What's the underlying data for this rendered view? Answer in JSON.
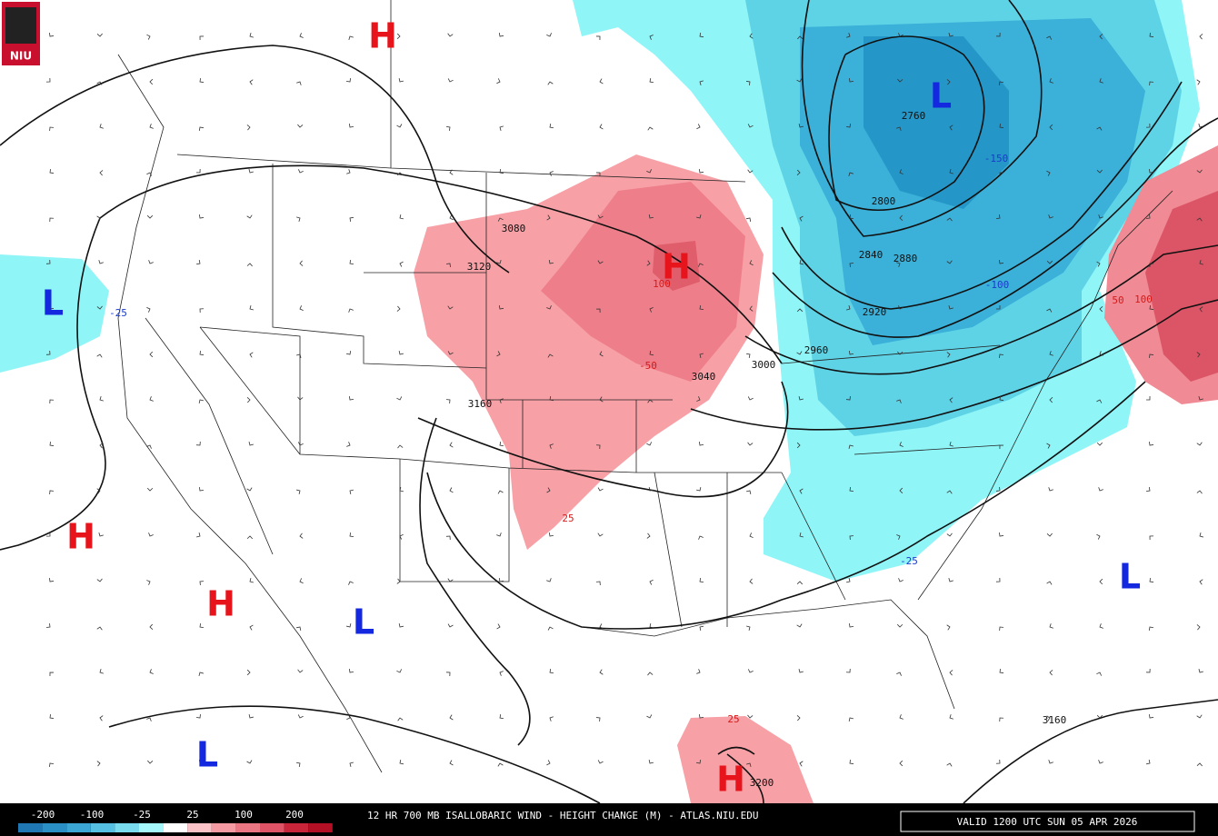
{
  "logo": "NIU",
  "pressure_centers": [
    {
      "label": "H"
    },
    {
      "label": "H"
    },
    {
      "label": "H"
    },
    {
      "label": "H"
    },
    {
      "label": "H"
    },
    {
      "label": "L"
    },
    {
      "label": "L"
    },
    {
      "label": "L"
    },
    {
      "label": "L"
    },
    {
      "label": "L"
    }
  ],
  "height_contour_labels": [
    "3080",
    "3120",
    "3160",
    "2760",
    "2800",
    "2840",
    "2880",
    "2920",
    "2960",
    "3000",
    "3040",
    "3200",
    "3160"
  ],
  "height_change_labels": [
    "-25",
    "100",
    "-50",
    "25",
    "-150",
    "-100",
    "25",
    "50",
    "100",
    "-25"
  ],
  "colorbar": {
    "labels": [
      "-200",
      "-100",
      "-25",
      "25",
      "100",
      "200"
    ]
  },
  "footer": {
    "title": "12 HR 700 MB ISALLOBARIC WIND - HEIGHT CHANGE (M) - ATLAS.NIU.EDU",
    "valid": "VALID 1200 UTC SUN 05 APR 2026"
  }
}
